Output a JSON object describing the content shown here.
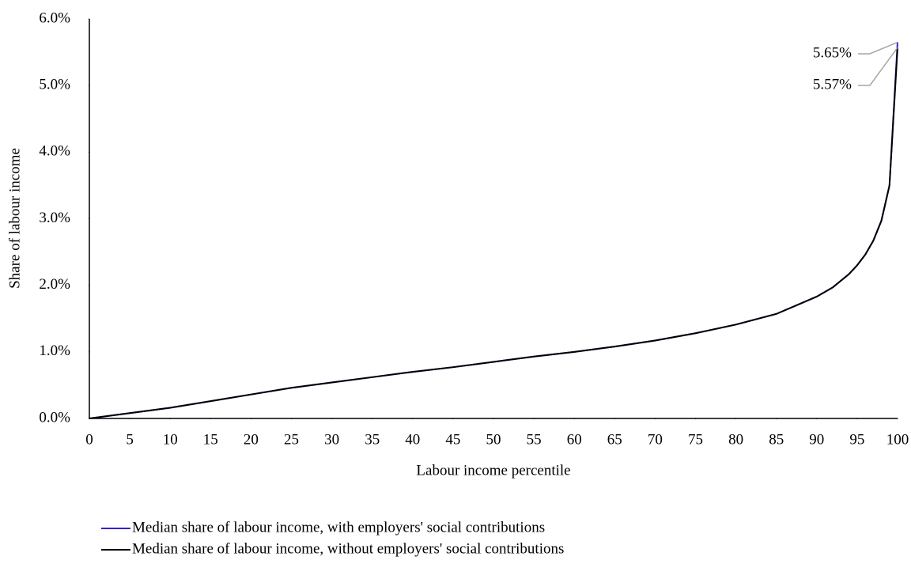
{
  "chart_data": {
    "type": "line",
    "xlabel": "Labour income percentile",
    "ylabel": "Share of labour income",
    "x": [
      0,
      5,
      10,
      15,
      20,
      25,
      30,
      35,
      40,
      45,
      50,
      55,
      60,
      65,
      70,
      75,
      80,
      85,
      90,
      92,
      94,
      95,
      96,
      97,
      98,
      99,
      100
    ],
    "series": [
      {
        "name": "Median share of labour income, with employers' social contributions",
        "color": "#3322cc",
        "values": [
          0,
          0.08,
          0.16,
          0.26,
          0.36,
          0.46,
          0.54,
          0.62,
          0.7,
          0.77,
          0.85,
          0.93,
          1.0,
          1.08,
          1.17,
          1.28,
          1.41,
          1.57,
          1.83,
          1.97,
          2.17,
          2.3,
          2.46,
          2.67,
          2.97,
          3.5,
          5.65
        ],
        "value_labels": [
          null,
          null,
          null,
          null,
          null,
          null,
          null,
          null,
          null,
          null,
          null,
          null,
          null,
          null,
          null,
          null,
          null,
          null,
          null,
          null,
          null,
          null,
          null,
          null,
          null,
          null,
          "5.65%"
        ]
      },
      {
        "name": "Median share of labour income, without employers' social contributions",
        "color": "#000000",
        "values": [
          0,
          0.08,
          0.16,
          0.26,
          0.36,
          0.46,
          0.54,
          0.62,
          0.7,
          0.77,
          0.85,
          0.93,
          1.0,
          1.08,
          1.17,
          1.28,
          1.41,
          1.57,
          1.83,
          1.97,
          2.17,
          2.3,
          2.46,
          2.67,
          2.97,
          3.5,
          5.57
        ],
        "value_labels": [
          null,
          null,
          null,
          null,
          null,
          null,
          null,
          null,
          null,
          null,
          null,
          null,
          null,
          null,
          null,
          null,
          null,
          null,
          null,
          null,
          null,
          null,
          null,
          null,
          null,
          null,
          "5.57%"
        ]
      }
    ],
    "xlim": [
      0,
      100
    ],
    "xticks": [
      0,
      5,
      10,
      15,
      20,
      25,
      30,
      35,
      40,
      45,
      50,
      55,
      60,
      65,
      70,
      75,
      80,
      85,
      90,
      95,
      100
    ],
    "ylim": [
      0,
      6
    ],
    "yticks": [
      {
        "value": 0,
        "label": "0.0%"
      },
      {
        "value": 1,
        "label": "1.0%"
      },
      {
        "value": 2,
        "label": "2.0%"
      },
      {
        "value": 3,
        "label": "3.0%"
      },
      {
        "value": 4,
        "label": "4.0%"
      },
      {
        "value": 5,
        "label": "5.0%"
      },
      {
        "value": 6,
        "label": "6.0%"
      }
    ],
    "grid": false
  }
}
